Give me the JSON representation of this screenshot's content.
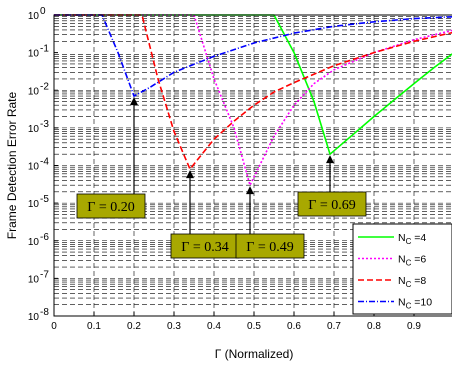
{
  "chart_data": {
    "type": "line",
    "xlabel": "Γ (Normalized)",
    "ylabel": "Frame Detection Error Rate",
    "xlim": [
      0,
      1
    ],
    "ylim_log10": [
      -8,
      0
    ],
    "y_scale": "log",
    "grid": true,
    "legend_position": "bottom-right",
    "x_ticks": [
      "0",
      "0.1",
      "0.2",
      "0.3",
      "0.4",
      "0.5",
      "0.6",
      "0.7",
      "0.8",
      "0.9",
      "1"
    ],
    "y_ticks": [
      {
        "base": "10",
        "exp": "0"
      },
      {
        "base": "10",
        "exp": "-1"
      },
      {
        "base": "10",
        "exp": "-2"
      },
      {
        "base": "10",
        "exp": "-3"
      },
      {
        "base": "10",
        "exp": "-4"
      },
      {
        "base": "10",
        "exp": "-5"
      },
      {
        "base": "10",
        "exp": "-6"
      },
      {
        "base": "10",
        "exp": "-7"
      },
      {
        "base": "10",
        "exp": "-8"
      }
    ],
    "series": [
      {
        "name_main": "N",
        "name_sub": "C",
        "name_suffix": " =4",
        "color": "#00ff00",
        "dash": "",
        "x": [
          0,
          0.55,
          0.6,
          0.65,
          0.69,
          0.75,
          0.8,
          0.85,
          0.9,
          0.95,
          1.0
        ],
        "y": [
          1,
          1,
          0.1,
          0.005,
          0.0002,
          0.0007,
          0.002,
          0.0055,
          0.015,
          0.04,
          0.1
        ]
      },
      {
        "name_main": "N",
        "name_sub": "C",
        "name_suffix": " =6",
        "color": "#ff00ff",
        "dash": "2,2",
        "x": [
          0,
          0.35,
          0.4,
          0.45,
          0.49,
          0.55,
          0.6,
          0.65,
          0.7,
          0.8,
          0.9,
          1.0
        ],
        "y": [
          1,
          1,
          0.02,
          0.001,
          3e-05,
          0.0006,
          0.004,
          0.015,
          0.035,
          0.1,
          0.22,
          0.4
        ]
      },
      {
        "name_main": "N",
        "name_sub": "C",
        "name_suffix": " =8",
        "color": "#ff0000",
        "dash": "6,3",
        "x": [
          0,
          0.22,
          0.26,
          0.3,
          0.34,
          0.4,
          0.45,
          0.5,
          0.55,
          0.6,
          0.7,
          0.8,
          0.9,
          1.0
        ],
        "y": [
          1,
          1,
          0.02,
          0.0008,
          8e-05,
          0.0005,
          0.0015,
          0.004,
          0.009,
          0.016,
          0.045,
          0.1,
          0.2,
          0.35
        ]
      },
      {
        "name_main": "N",
        "name_sub": "C",
        "name_suffix": " =10",
        "color": "#0000ff",
        "dash": "6,2,1,2",
        "x": [
          0,
          0.12,
          0.16,
          0.2,
          0.24,
          0.3,
          0.4,
          0.5,
          0.6,
          0.7,
          0.8,
          0.9,
          1.0
        ],
        "y": [
          1,
          1,
          0.1,
          0.007,
          0.012,
          0.03,
          0.08,
          0.18,
          0.33,
          0.5,
          0.66,
          0.8,
          0.9
        ]
      }
    ],
    "annotations": [
      {
        "text": "Γ = 0.20",
        "target_x": 0.2,
        "target_y": 0.007
      },
      {
        "text": "Γ = 0.34",
        "target_x": 0.34,
        "target_y": 8e-05
      },
      {
        "text": "Γ = 0.49",
        "target_x": 0.49,
        "target_y": 3e-05
      },
      {
        "text": "Γ = 0.69",
        "target_x": 0.69,
        "target_y": 0.0002
      }
    ],
    "annotation_box_color": "#a8a800"
  }
}
